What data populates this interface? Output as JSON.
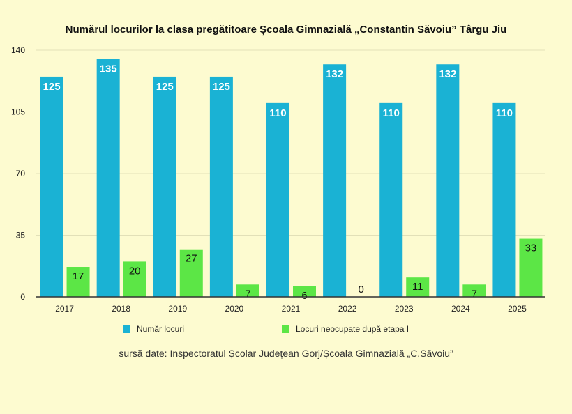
{
  "chart_data": {
    "type": "bar",
    "title": "Numărul locurilor la clasa pregătitoare Școala Gimnazială „Constantin Săvoiu” Târgu Jiu",
    "categories": [
      "2017",
      "2018",
      "2019",
      "2020",
      "2021",
      "2022",
      "2023",
      "2024",
      "2025"
    ],
    "series": [
      {
        "name": "Număr locuri",
        "color": "#1ab2d4",
        "values": [
          125,
          135,
          125,
          125,
          110,
          132,
          110,
          132,
          110
        ]
      },
      {
        "name": "Locuri neocupate după etapa I",
        "color": "#5ce646",
        "values": [
          17,
          20,
          27,
          7,
          6,
          0,
          11,
          7,
          33
        ]
      }
    ],
    "yticks": [
      0,
      35,
      70,
      105,
      140
    ],
    "ylim": [
      0,
      140
    ],
    "grid": true,
    "legend_position": "bottom",
    "source_note": "sursă date: Inspectoratul Școlar Județean Gorj/Școala Gimnazială „C.Săvoiu”"
  }
}
